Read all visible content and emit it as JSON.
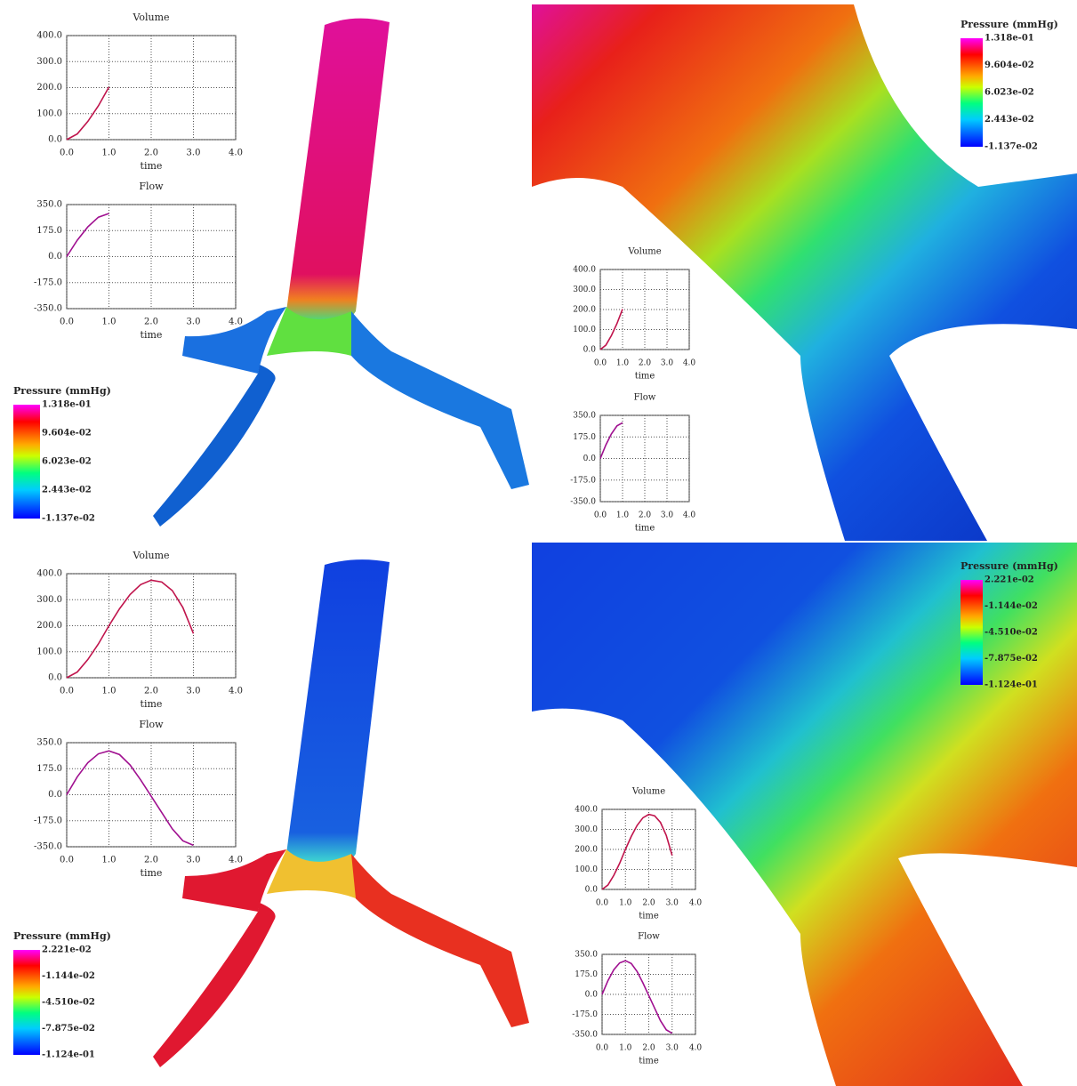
{
  "chart_data": [
    {
      "type": "line",
      "title": "Volume",
      "x_label": "time",
      "x": [
        0,
        0.25,
        0.5,
        0.75,
        1.0
      ],
      "values": [
        0,
        22,
        70,
        130,
        202
      ],
      "color": "#c0144c",
      "xlim": [
        0,
        4
      ],
      "xticks": [
        {
          "value": 0,
          "label": "0.0"
        },
        {
          "value": 1,
          "label": "1.0"
        },
        {
          "value": 2,
          "label": "2.0"
        },
        {
          "value": 3,
          "label": "3.0"
        },
        {
          "value": 4,
          "label": "4.0"
        }
      ],
      "ylim": [
        0,
        400
      ],
      "yticks": [
        {
          "value": 0,
          "label": "0.0"
        },
        {
          "value": 100,
          "label": "100.0"
        },
        {
          "value": 200,
          "label": "200.0"
        },
        {
          "value": 300,
          "label": "300.0"
        },
        {
          "value": 400,
          "label": "400.0"
        }
      ],
      "grid": true
    },
    {
      "type": "line",
      "title": "Flow",
      "x_label": "time",
      "x": [
        0,
        0.25,
        0.5,
        0.75,
        1.0
      ],
      "values": [
        0,
        110,
        200,
        265,
        290
      ],
      "color": "#a01090",
      "xlim": [
        0,
        4
      ],
      "xticks": [
        {
          "value": 0,
          "label": "0.0"
        },
        {
          "value": 1,
          "label": "1.0"
        },
        {
          "value": 2,
          "label": "2.0"
        },
        {
          "value": 3,
          "label": "3.0"
        },
        {
          "value": 4,
          "label": "4.0"
        }
      ],
      "ylim": [
        -350,
        350
      ],
      "yticks": [
        {
          "value": -350,
          "label": "-350.0"
        },
        {
          "value": -175,
          "label": "-175.0"
        },
        {
          "value": 0,
          "label": "0.0"
        },
        {
          "value": 175,
          "label": "175.0"
        },
        {
          "value": 350,
          "label": "350.0"
        }
      ],
      "grid": true
    },
    {
      "type": "line",
      "title": "Volume",
      "x_label": "time",
      "x": [
        0,
        0.25,
        0.5,
        0.75,
        1.0
      ],
      "values": [
        0,
        22,
        70,
        130,
        202
      ],
      "color": "#c0144c",
      "xlim": [
        0,
        4
      ],
      "xticks": [
        {
          "value": 0,
          "label": "0.0"
        },
        {
          "value": 1,
          "label": "1.0"
        },
        {
          "value": 2,
          "label": "2.0"
        },
        {
          "value": 3,
          "label": "3.0"
        },
        {
          "value": 4,
          "label": "4.0"
        }
      ],
      "ylim": [
        0,
        400
      ],
      "yticks": [
        {
          "value": 0,
          "label": "0.0"
        },
        {
          "value": 100,
          "label": "100.0"
        },
        {
          "value": 200,
          "label": "200.0"
        },
        {
          "value": 300,
          "label": "300.0"
        },
        {
          "value": 400,
          "label": "400.0"
        }
      ],
      "grid": true
    },
    {
      "type": "line",
      "title": "Flow",
      "x_label": "time",
      "x": [
        0,
        0.25,
        0.5,
        0.75,
        1.0
      ],
      "values": [
        0,
        110,
        200,
        265,
        290
      ],
      "color": "#a01090",
      "xlim": [
        0,
        4
      ],
      "xticks": [
        {
          "value": 0,
          "label": "0.0"
        },
        {
          "value": 1,
          "label": "1.0"
        },
        {
          "value": 2,
          "label": "2.0"
        },
        {
          "value": 3,
          "label": "3.0"
        },
        {
          "value": 4,
          "label": "4.0"
        }
      ],
      "ylim": [
        -350,
        350
      ],
      "yticks": [
        {
          "value": -350,
          "label": "-350.0"
        },
        {
          "value": -175,
          "label": "-175.0"
        },
        {
          "value": 0,
          "label": "0.0"
        },
        {
          "value": 175,
          "label": "175.0"
        },
        {
          "value": 350,
          "label": "350.0"
        }
      ],
      "grid": true
    },
    {
      "type": "line",
      "title": "Volume",
      "x_label": "time",
      "x": [
        0,
        0.25,
        0.5,
        0.75,
        1.0,
        1.25,
        1.5,
        1.75,
        2.0,
        2.25,
        2.5,
        2.75,
        3.0
      ],
      "values": [
        0,
        22,
        70,
        130,
        200,
        265,
        320,
        358,
        375,
        368,
        335,
        270,
        170
      ],
      "color": "#c0144c",
      "xlim": [
        0,
        4
      ],
      "xticks": [
        {
          "value": 0,
          "label": "0.0"
        },
        {
          "value": 1,
          "label": "1.0"
        },
        {
          "value": 2,
          "label": "2.0"
        },
        {
          "value": 3,
          "label": "3.0"
        },
        {
          "value": 4,
          "label": "4.0"
        }
      ],
      "ylim": [
        0,
        400
      ],
      "yticks": [
        {
          "value": 0,
          "label": "0.0"
        },
        {
          "value": 100,
          "label": "100.0"
        },
        {
          "value": 200,
          "label": "200.0"
        },
        {
          "value": 300,
          "label": "300.0"
        },
        {
          "value": 400,
          "label": "400.0"
        }
      ],
      "grid": true
    },
    {
      "type": "line",
      "title": "Flow",
      "x_label": "time",
      "x": [
        0,
        0.25,
        0.5,
        0.75,
        1.0,
        1.25,
        1.5,
        1.75,
        2.0,
        2.25,
        2.5,
        2.75,
        3.0
      ],
      "values": [
        0,
        120,
        215,
        275,
        295,
        270,
        200,
        100,
        -10,
        -120,
        -230,
        -310,
        -340
      ],
      "color": "#a01090",
      "xlim": [
        0,
        4
      ],
      "xticks": [
        {
          "value": 0,
          "label": "0.0"
        },
        {
          "value": 1,
          "label": "1.0"
        },
        {
          "value": 2,
          "label": "2.0"
        },
        {
          "value": 3,
          "label": "3.0"
        },
        {
          "value": 4,
          "label": "4.0"
        }
      ],
      "ylim": [
        -350,
        350
      ],
      "yticks": [
        {
          "value": -350,
          "label": "-350.0"
        },
        {
          "value": -175,
          "label": "-175.0"
        },
        {
          "value": 0,
          "label": "0.0"
        },
        {
          "value": 175,
          "label": "175.0"
        },
        {
          "value": 350,
          "label": "350.0"
        }
      ],
      "grid": true
    },
    {
      "type": "line",
      "title": "Volume",
      "x_label": "time",
      "x": [
        0,
        0.25,
        0.5,
        0.75,
        1.0,
        1.25,
        1.5,
        1.75,
        2.0,
        2.25,
        2.5,
        2.75,
        3.0
      ],
      "values": [
        0,
        22,
        70,
        130,
        200,
        265,
        320,
        358,
        375,
        368,
        335,
        270,
        170
      ],
      "color": "#c0144c",
      "xlim": [
        0,
        4
      ],
      "xticks": [
        {
          "value": 0,
          "label": "0.0"
        },
        {
          "value": 1,
          "label": "1.0"
        },
        {
          "value": 2,
          "label": "2.0"
        },
        {
          "value": 3,
          "label": "3.0"
        },
        {
          "value": 4,
          "label": "4.0"
        }
      ],
      "ylim": [
        0,
        400
      ],
      "yticks": [
        {
          "value": 0,
          "label": "0.0"
        },
        {
          "value": 100,
          "label": "100.0"
        },
        {
          "value": 200,
          "label": "200.0"
        },
        {
          "value": 300,
          "label": "300.0"
        },
        {
          "value": 400,
          "label": "400.0"
        }
      ],
      "grid": true
    },
    {
      "type": "line",
      "title": "Flow",
      "x_label": "time",
      "x": [
        0,
        0.25,
        0.5,
        0.75,
        1.0,
        1.25,
        1.5,
        1.75,
        2.0,
        2.25,
        2.5,
        2.75,
        3.0
      ],
      "values": [
        0,
        120,
        215,
        275,
        295,
        270,
        200,
        100,
        -10,
        -120,
        -230,
        -310,
        -340
      ],
      "color": "#a01090",
      "xlim": [
        0,
        4
      ],
      "xticks": [
        {
          "value": 0,
          "label": "0.0"
        },
        {
          "value": 1,
          "label": "1.0"
        },
        {
          "value": 2,
          "label": "2.0"
        },
        {
          "value": 3,
          "label": "3.0"
        },
        {
          "value": 4,
          "label": "4.0"
        }
      ],
      "ylim": [
        -350,
        350
      ],
      "yticks": [
        {
          "value": -350,
          "label": "-350.0"
        },
        {
          "value": -175,
          "label": "-175.0"
        },
        {
          "value": 0,
          "label": "0.0"
        },
        {
          "value": 175,
          "label": "175.0"
        },
        {
          "value": 350,
          "label": "350.0"
        }
      ],
      "grid": true
    }
  ],
  "colorbars": [
    {
      "title": "Pressure (mmHg)",
      "labels": [
        "1.318e-01",
        "9.604e-02",
        "6.023e-02",
        "2.443e-02",
        "-1.137e-02"
      ]
    },
    {
      "title": "Pressure (mmHg)",
      "labels": [
        "1.318e-01",
        "9.604e-02",
        "6.023e-02",
        "2.443e-02",
        "-1.137e-02"
      ]
    },
    {
      "title": "Pressure (mmHg)",
      "labels": [
        "2.221e-02",
        "-1.144e-02",
        "-4.510e-02",
        "-7.875e-02",
        "-1.124e-01"
      ]
    },
    {
      "title": "Pressure (mmHg)",
      "labels": [
        "2.221e-02",
        "-1.144e-02",
        "-4.510e-02",
        "-7.875e-02",
        "-1.124e-01"
      ]
    }
  ]
}
